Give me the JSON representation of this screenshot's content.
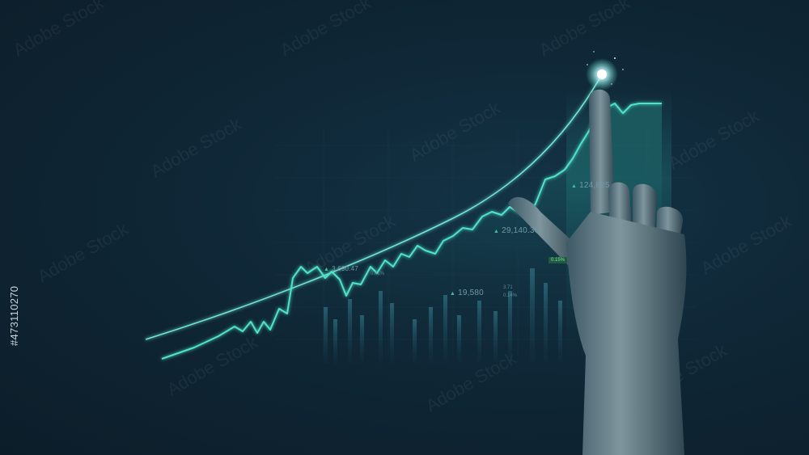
{
  "image": {
    "side_id": "#473110270",
    "watermark": "Adobe Stock"
  },
  "readouts": {
    "r1": "124,825",
    "r2": "29,140.36",
    "r3": "3,690.47",
    "r4": "19,580"
  },
  "small_tags": {
    "t1": "0.15%",
    "t2": "3.71",
    "t3": "0.14%",
    "t4": "0.41%"
  },
  "colors": {
    "background": "#0e2230",
    "line": "#4fe3c9",
    "glow": "#9ff5ff"
  }
}
